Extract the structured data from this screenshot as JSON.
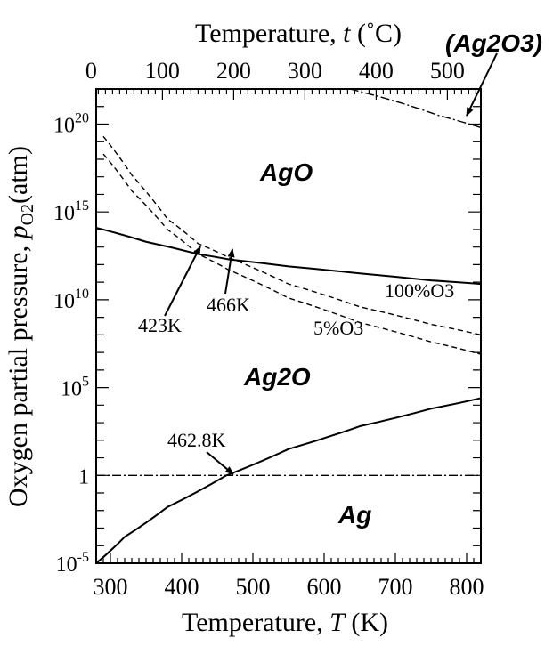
{
  "chart_data": {
    "type": "line",
    "x_bottom": {
      "label_prefix": "Temperature, ",
      "label_var": "T",
      "label_suffix": " (K)",
      "range": [
        280,
        820
      ],
      "ticks": [
        "300",
        "400",
        "500",
        "600",
        "700",
        "800"
      ]
    },
    "x_top": {
      "label_prefix": "Temperature, ",
      "label_var": "t",
      "label_suffix": " (˚C)",
      "ticks": [
        "0",
        "100",
        "200",
        "300",
        "400",
        "500"
      ],
      "tick_positions_K": [
        273,
        373,
        473,
        573,
        673,
        773
      ]
    },
    "y": {
      "label_prefix": "Oxygen partial pressure, ",
      "label_var": "p",
      "label_sub": "O2",
      "label_suffix": "(atm)",
      "scale": "log",
      "range_log10": [
        -5,
        22
      ],
      "ticks": [
        {
          "log": 20,
          "base": "10",
          "exp": "20"
        },
        {
          "log": 15,
          "base": "10",
          "exp": "15"
        },
        {
          "log": 10,
          "base": "10",
          "exp": "10"
        },
        {
          "log": 5,
          "base": "10",
          "exp": "5"
        },
        {
          "log": 0,
          "base": "1",
          "exp": ""
        },
        {
          "log": -5,
          "base": "10",
          "exp": "-5"
        }
      ]
    },
    "series": [
      {
        "style": "solid",
        "points": [
          [
            280,
            14.1
          ],
          [
            350,
            13.3
          ],
          [
            423,
            12.6
          ],
          [
            466,
            12.3
          ],
          [
            550,
            11.9
          ],
          [
            650,
            11.5
          ],
          [
            750,
            11.1
          ],
          [
            820,
            10.9
          ]
        ]
      },
      {
        "style": "dashed",
        "points": [
          [
            290,
            19.3
          ],
          [
            330,
            17.1
          ],
          [
            380,
            14.6
          ],
          [
            423,
            13.2
          ],
          [
            466,
            12.4
          ],
          [
            550,
            10.9
          ],
          [
            650,
            9.6
          ],
          [
            750,
            8.6
          ],
          [
            820,
            8.0
          ]
        ]
      },
      {
        "style": "dashed",
        "points": [
          [
            290,
            18.3
          ],
          [
            330,
            16.2
          ],
          [
            380,
            14.0
          ],
          [
            423,
            12.6
          ],
          [
            466,
            11.7
          ],
          [
            550,
            10.1
          ],
          [
            650,
            8.7
          ],
          [
            750,
            7.6
          ],
          [
            820,
            6.9
          ]
        ]
      },
      {
        "style": "solid",
        "points": [
          [
            280,
            -5.0
          ],
          [
            320,
            -3.5
          ],
          [
            380,
            -1.8
          ],
          [
            462.8,
            0.0
          ],
          [
            550,
            1.5
          ],
          [
            650,
            2.8
          ],
          [
            750,
            3.8
          ],
          [
            820,
            4.4
          ]
        ]
      },
      {
        "style": "dashdot",
        "points": [
          [
            280,
            0.0
          ],
          [
            820,
            0.0
          ]
        ]
      },
      {
        "style": "dashdot",
        "points": [
          [
            636,
            22.0
          ],
          [
            700,
            21.3
          ],
          [
            760,
            20.5
          ],
          [
            820,
            19.8
          ]
        ]
      }
    ],
    "region_labels": [
      "AgO",
      "Ag2O",
      "Ag"
    ],
    "annotations": {
      "ag2o3": "(Ag2O3)",
      "k423": "423K",
      "k466": "466K",
      "k4628": "462.8K",
      "o3_100": "100%O3",
      "o3_5": "5%O3"
    }
  }
}
